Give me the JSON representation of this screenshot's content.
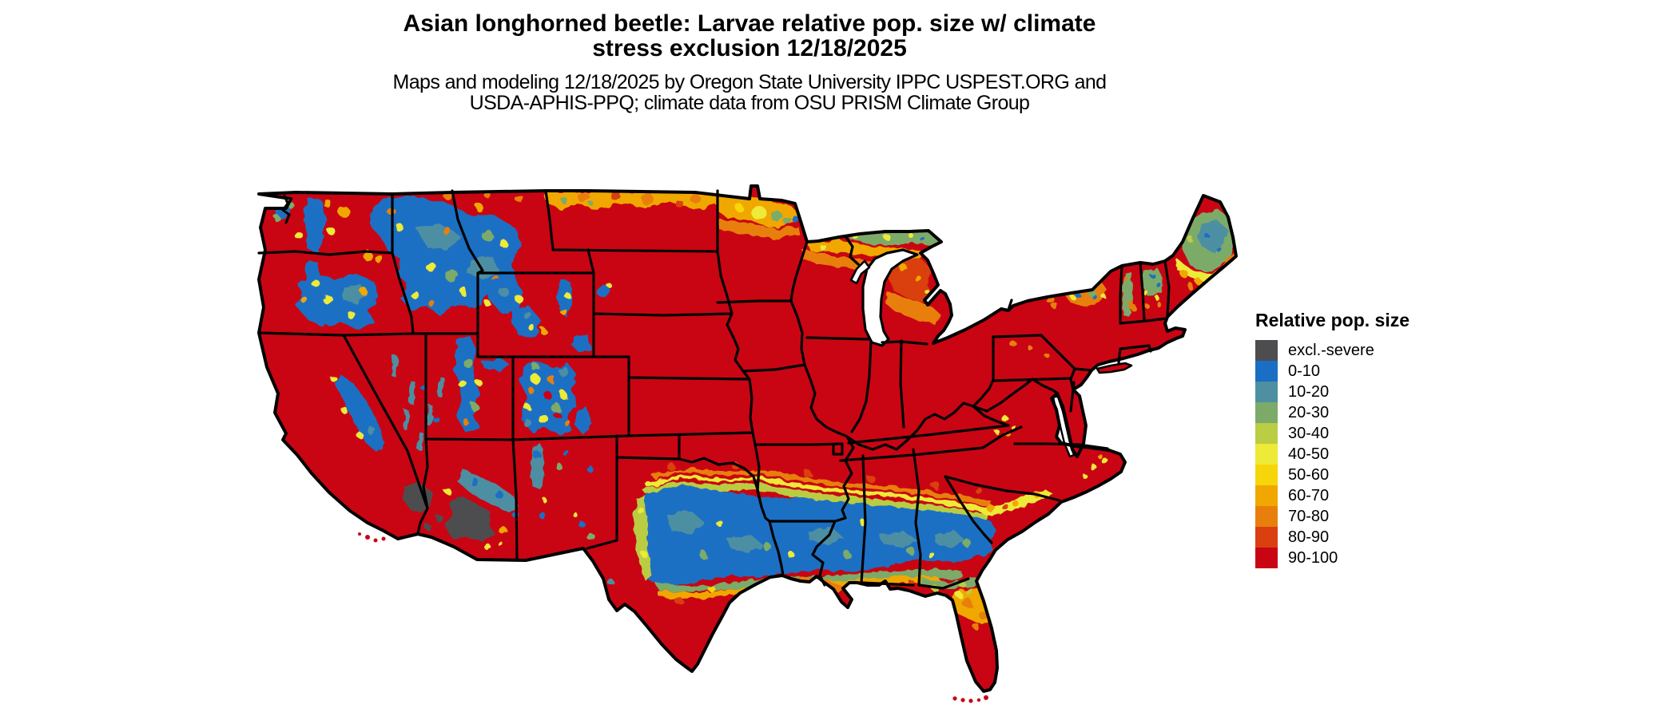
{
  "header": {
    "title_line1": "Asian longhorned beetle: Larvae relative pop. size w/ climate",
    "title_line2": "stress exclusion 12/18/2025",
    "subtitle_line1": "Maps and modeling 12/18/2025 by Oregon State University IPPC USPEST.ORG and",
    "subtitle_line2": "USDA-APHIS-PPQ; climate data from OSU PRISM Climate Group"
  },
  "legend": {
    "title": "Relative pop. size",
    "items": [
      {
        "label": "excl.-severe",
        "key": "excl",
        "color": "#4d4d4f"
      },
      {
        "label": "0-10",
        "key": "p0",
        "color": "#1a6fc4"
      },
      {
        "label": "10-20",
        "key": "p10",
        "color": "#4e8fa2"
      },
      {
        "label": "20-30",
        "key": "p20",
        "color": "#7cab69"
      },
      {
        "label": "30-40",
        "key": "p30",
        "color": "#bacd43"
      },
      {
        "label": "40-50",
        "key": "p40",
        "color": "#edea38"
      },
      {
        "label": "50-60",
        "key": "p50",
        "color": "#f6d60a"
      },
      {
        "label": "60-70",
        "key": "p60",
        "color": "#f0a800"
      },
      {
        "label": "70-80",
        "key": "p70",
        "color": "#e87f0c"
      },
      {
        "label": "80-90",
        "key": "p80",
        "color": "#da3f10"
      },
      {
        "label": "90-100",
        "key": "p90",
        "color": "#c90513"
      }
    ]
  },
  "map": {
    "name": "Continental United States raster map of Asian longhorned beetle larvae relative population size",
    "background": "#ffffff",
    "border_color": "#000000",
    "palette": {
      "excl": "#4d4d4f",
      "p0": "#1a6fc4",
      "p10": "#4e8fa2",
      "p20": "#7cab69",
      "p30": "#bacd43",
      "p40": "#edea38",
      "p50": "#f6d60a",
      "p60": "#f0a800",
      "p70": "#e87f0c",
      "p80": "#da3f10",
      "p90": "#c90513"
    }
  }
}
